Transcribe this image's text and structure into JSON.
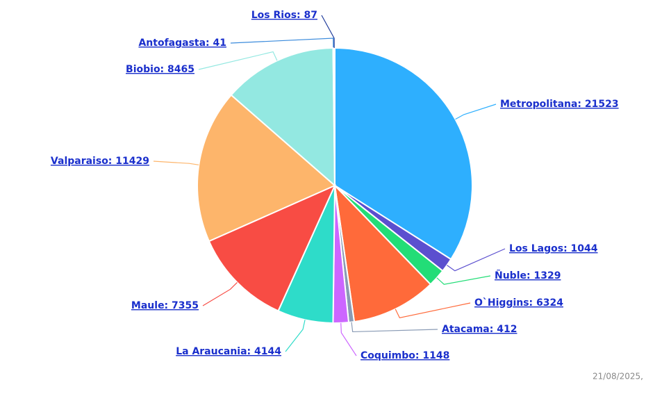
{
  "chart_data": {
    "type": "pie",
    "values": [
      21523,
      1044,
      1329,
      6324,
      412,
      1148,
      4144,
      7355,
      11429,
      8465,
      41,
      87
    ],
    "value_labels": [
      "Metropolitana: 21523",
      "Los Lagos: 1044",
      "Ñuble: 1329",
      "O`Higgins: 6324",
      "Atacama: 412",
      "Coquimbo: 1148",
      "La Araucania: 4144",
      "Maule: 7355",
      "Valparaiso: 11429",
      "Biobio: 8465",
      "Antofagasta: 41",
      "Los Rios: 87"
    ],
    "colors": [
      "#2eaffe",
      "#5b4fcf",
      "#22dd77",
      "#ff6a3a",
      "#8a9bb5",
      "#cc66ff",
      "#2edcc9",
      "#f84c44",
      "#fdb56b",
      "#93e8e1",
      "#3b8bdc",
      "#1f3b9b"
    ],
    "footer": "21/08/2025,"
  }
}
